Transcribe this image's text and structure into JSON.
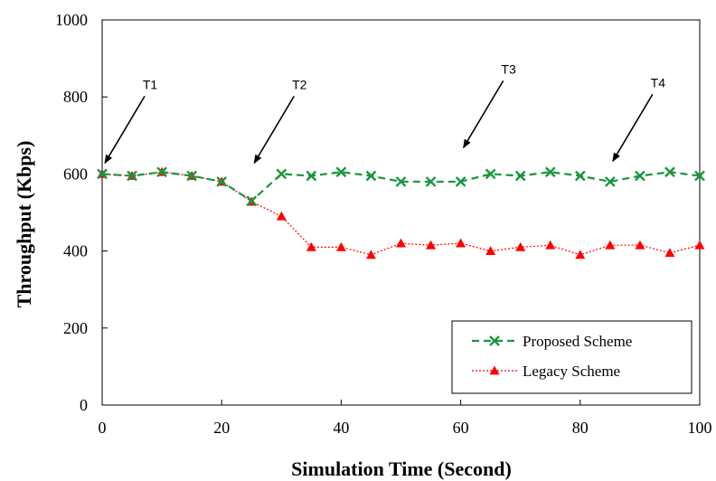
{
  "chart_data": {
    "type": "line",
    "xlabel": "Simulation Time (Second)",
    "ylabel": "Throughput (Kbps)",
    "xlim": [
      0,
      100
    ],
    "ylim": [
      0,
      1000
    ],
    "xticks": [
      0,
      20,
      40,
      60,
      80,
      100
    ],
    "yticks": [
      0,
      200,
      400,
      600,
      800,
      1000
    ],
    "grid": false,
    "legend_position": "bottom-right",
    "x": [
      0,
      5,
      10,
      15,
      20,
      25,
      30,
      35,
      40,
      45,
      50,
      55,
      60,
      65,
      70,
      75,
      80,
      85,
      90,
      95,
      100
    ],
    "series": [
      {
        "name": "Proposed Scheme",
        "color": "#1a9641",
        "marker": "x",
        "line_style": "dashed",
        "values": [
          600,
          595,
          605,
          595,
          580,
          530,
          600,
          595,
          605,
          595,
          580,
          580,
          580,
          600,
          595,
          605,
          595,
          580,
          595,
          605,
          595
        ]
      },
      {
        "name": "Legacy Scheme",
        "color": "#ff0000",
        "marker": "triangle",
        "line_style": "dotted",
        "values": [
          600,
          595,
          605,
          595,
          580,
          528,
          490,
          410,
          410,
          390,
          420,
          415,
          420,
          400,
          410,
          415,
          390,
          415,
          415,
          395,
          415
        ]
      }
    ],
    "annotations": [
      {
        "label": "T1",
        "x": 0,
        "y": 600
      },
      {
        "label": "T2",
        "x": 25,
        "y": 600
      },
      {
        "label": "T3",
        "x": 60,
        "y": 640
      },
      {
        "label": "T4",
        "x": 85,
        "y": 605
      }
    ]
  }
}
